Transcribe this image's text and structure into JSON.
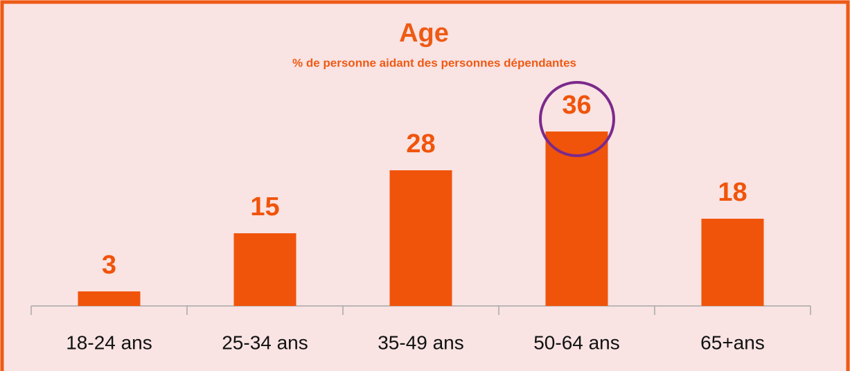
{
  "chart_data": {
    "type": "bar",
    "title": "Age",
    "subtitle": "% de personne aidant des personnes dépendantes",
    "categories": [
      "18-24 ans",
      "25-34 ans",
      "35-49 ans",
      "50-64 ans",
      "65+ans"
    ],
    "values": [
      3,
      15,
      28,
      36,
      18
    ],
    "color": "#f0540a"
  }
}
